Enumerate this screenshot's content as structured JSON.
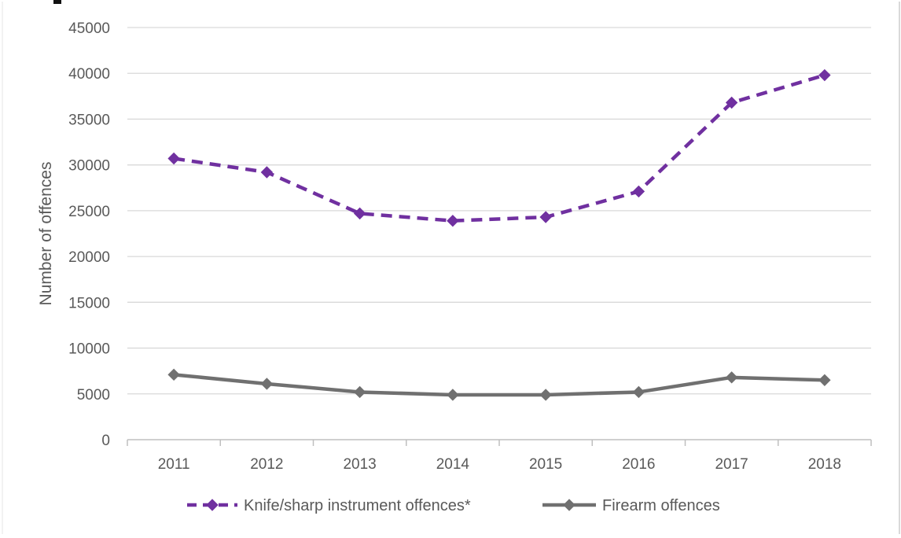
{
  "chart_data": {
    "type": "line",
    "title": "",
    "xlabel": "",
    "ylabel": "Number of offences",
    "categories": [
      "2011",
      "2012",
      "2013",
      "2014",
      "2015",
      "2016",
      "2017",
      "2018"
    ],
    "ylim": [
      0,
      45000
    ],
    "yticks": [
      0,
      5000,
      10000,
      15000,
      20000,
      25000,
      30000,
      35000,
      40000,
      45000
    ],
    "grid": true,
    "legend_position": "bottom",
    "series": [
      {
        "name": "Knife/sharp instrument offences*",
        "values": [
          30700,
          29200,
          24700,
          23900,
          24300,
          27100,
          36800,
          39800
        ],
        "color": "#7030a0",
        "line_style": "dashed",
        "marker": "diamond"
      },
      {
        "name": "Firearm offences",
        "values": [
          7100,
          6100,
          5200,
          4900,
          4900,
          5200,
          6800,
          6500
        ],
        "color": "#707070",
        "line_style": "solid",
        "marker": "diamond"
      }
    ]
  }
}
